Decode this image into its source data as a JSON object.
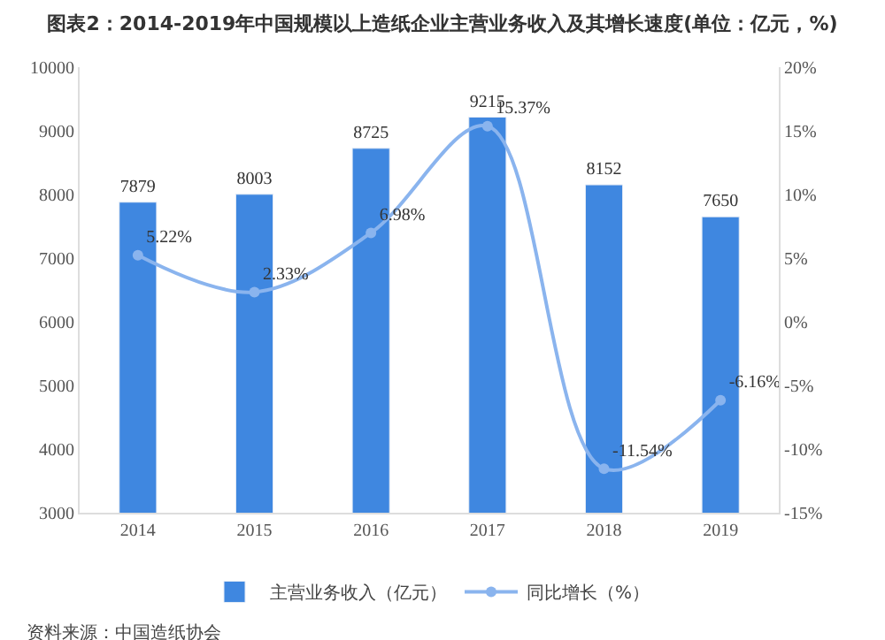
{
  "chart_data": {
    "type": "bar",
    "title": "图表2：2014-2019年中国规模以上造纸企业主营业务收入及其增长速度(单位：亿元，%)",
    "categories": [
      "2014",
      "2015",
      "2016",
      "2017",
      "2018",
      "2019"
    ],
    "series": [
      {
        "name": "主营业务收入（亿元）",
        "color": "#3f87e0",
        "values": [
          7879,
          8003,
          8725,
          9215,
          8152,
          7650
        ],
        "value_labels": [
          "7879",
          "8003",
          "8725",
          "9215",
          "8152",
          "7650"
        ]
      },
      {
        "name": "同比增长（%）",
        "type": "line",
        "axis": "y2",
        "color": "#8ab4ee",
        "values": [
          5.22,
          2.33,
          6.98,
          15.37,
          -11.54,
          -6.16
        ],
        "value_labels": [
          "5.22%",
          "2.33%",
          "6.98%",
          "15.37%",
          "-11.54%",
          "-6.16%"
        ]
      }
    ],
    "ylim": [
      3000,
      10000
    ],
    "yticks": [
      3000,
      4000,
      5000,
      6000,
      7000,
      8000,
      9000,
      10000
    ],
    "y2lim": [
      -15,
      20
    ],
    "y2ticks": [
      {
        "value": -15,
        "label": "-15%"
      },
      {
        "value": -10,
        "label": "-10%"
      },
      {
        "value": -5,
        "label": "-5%"
      },
      {
        "value": 0,
        "label": "0%"
      },
      {
        "value": 5,
        "label": "5%"
      },
      {
        "value": 10,
        "label": "10%"
      },
      {
        "value": 15,
        "label": "15%"
      },
      {
        "value": 20,
        "label": "20%"
      }
    ],
    "marker": "circle",
    "line_style": "solid",
    "legend": "bottom",
    "annotations": [
      "资料来源：中国造纸协会"
    ]
  }
}
